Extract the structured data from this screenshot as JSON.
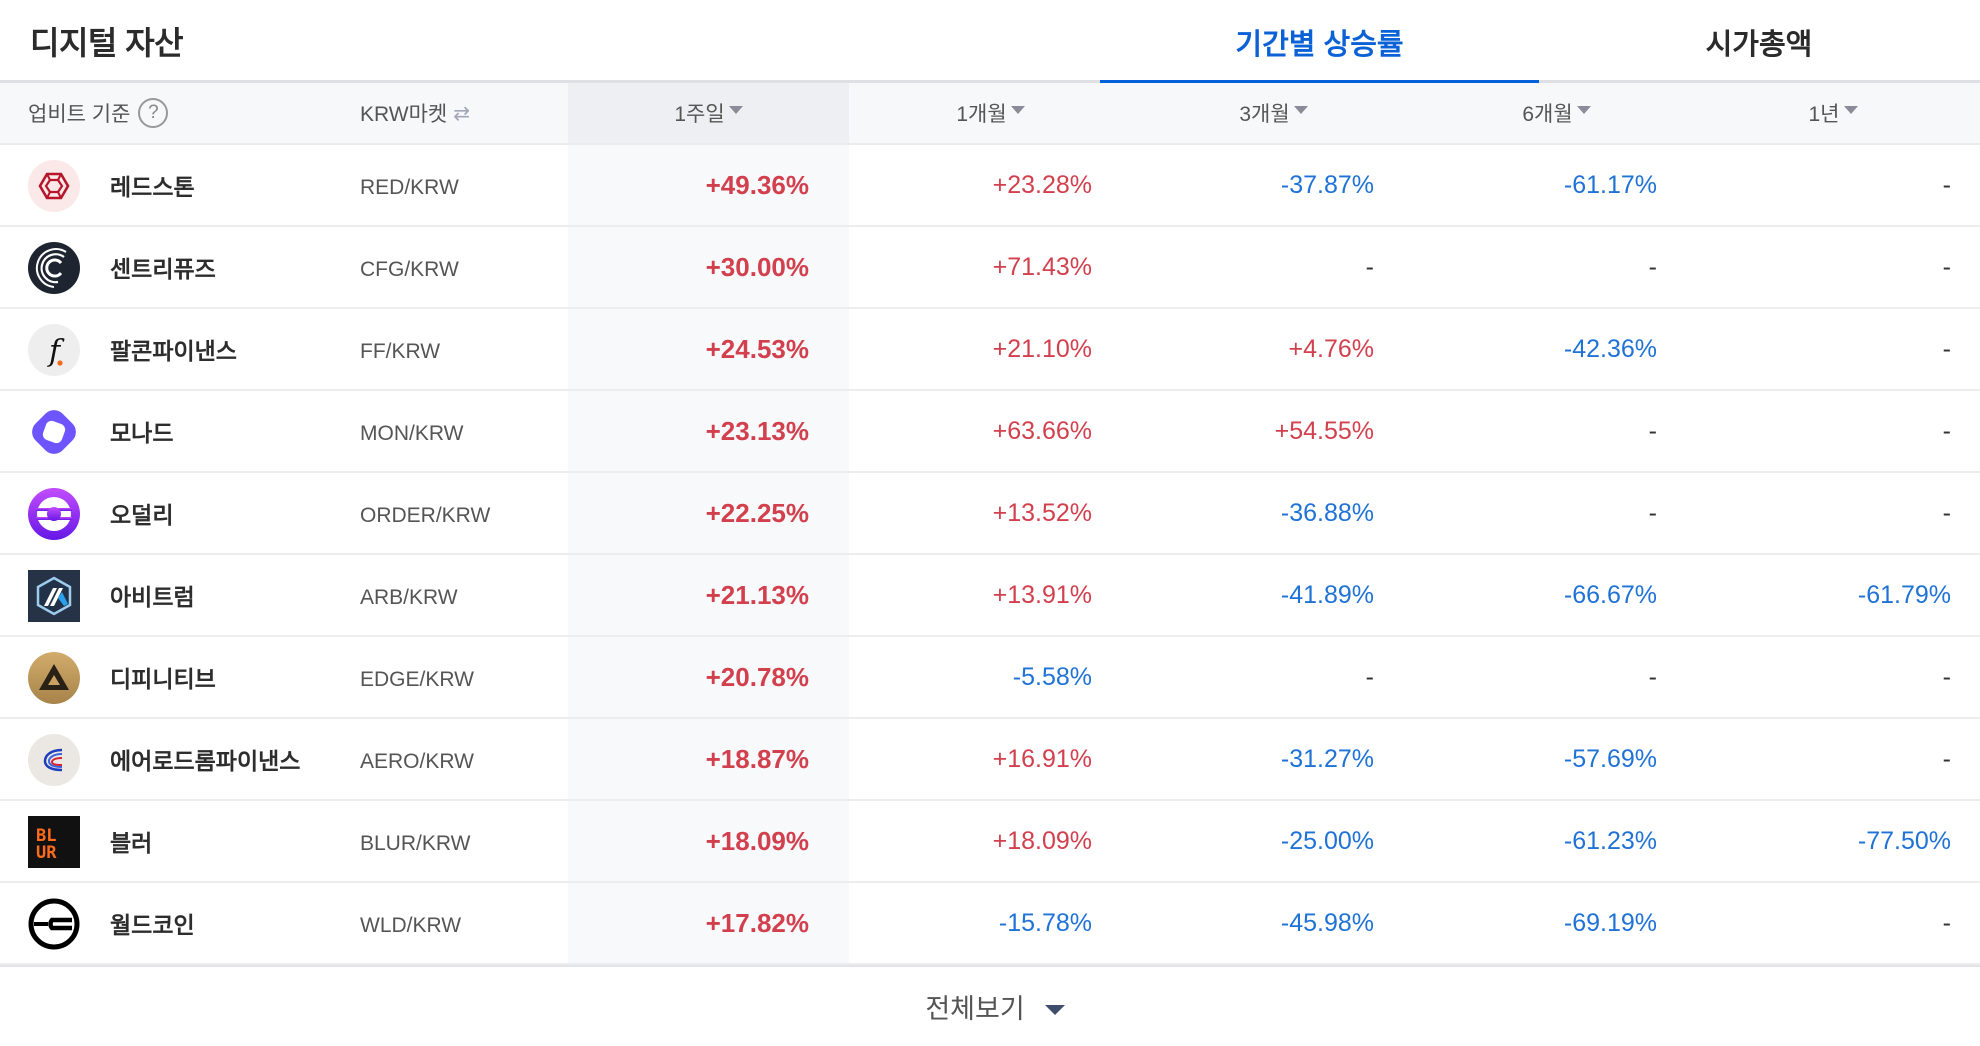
{
  "header": {
    "title": "디지털 자산",
    "tabs": [
      {
        "label": "기간별 상승률",
        "active": true
      },
      {
        "label": "시가총액",
        "active": false
      }
    ]
  },
  "table_header": {
    "basis_label": "업비트 기준",
    "help_icon": "?",
    "market_label": "KRW마켓",
    "swap_icon": "⇄",
    "columns": [
      "1주일",
      "1개월",
      "3개월",
      "6개월",
      "1년"
    ]
  },
  "colors": {
    "accent": "#0061d9",
    "up": "#d2404e",
    "down": "#1f72d6"
  },
  "rows": [
    {
      "name": "레드스톤",
      "market": "RED/KRW",
      "icon": "redstone-icon",
      "w1": "+49.36%",
      "m1": "+23.28%",
      "m3": "-37.87%",
      "m6": "-61.17%",
      "y1": "-"
    },
    {
      "name": "센트리퓨즈",
      "market": "CFG/KRW",
      "icon": "centrifuge-icon",
      "w1": "+30.00%",
      "m1": "+71.43%",
      "m3": "-",
      "m6": "-",
      "y1": "-"
    },
    {
      "name": "팔콘파이낸스",
      "market": "FF/KRW",
      "icon": "falcon-finance-icon",
      "w1": "+24.53%",
      "m1": "+21.10%",
      "m3": "+4.76%",
      "m6": "-42.36%",
      "y1": "-"
    },
    {
      "name": "모나드",
      "market": "MON/KRW",
      "icon": "monad-icon",
      "w1": "+23.13%",
      "m1": "+63.66%",
      "m3": "+54.55%",
      "m6": "-",
      "y1": "-"
    },
    {
      "name": "오덜리",
      "market": "ORDER/KRW",
      "icon": "orderly-icon",
      "w1": "+22.25%",
      "m1": "+13.52%",
      "m3": "-36.88%",
      "m6": "-",
      "y1": "-"
    },
    {
      "name": "아비트럼",
      "market": "ARB/KRW",
      "icon": "arbitrum-icon",
      "w1": "+21.13%",
      "m1": "+13.91%",
      "m3": "-41.89%",
      "m6": "-66.67%",
      "y1": "-61.79%"
    },
    {
      "name": "디피니티브",
      "market": "EDGE/KRW",
      "icon": "definitive-icon",
      "w1": "+20.78%",
      "m1": "-5.58%",
      "m3": "-",
      "m6": "-",
      "y1": "-"
    },
    {
      "name": "에어로드롬파이낸스",
      "market": "AERO/KRW",
      "icon": "aerodrome-icon",
      "w1": "+18.87%",
      "m1": "+16.91%",
      "m3": "-31.27%",
      "m6": "-57.69%",
      "y1": "-"
    },
    {
      "name": "블러",
      "market": "BLUR/KRW",
      "icon": "blur-icon",
      "w1": "+18.09%",
      "m1": "+18.09%",
      "m3": "-25.00%",
      "m6": "-61.23%",
      "y1": "-77.50%"
    },
    {
      "name": "월드코인",
      "market": "WLD/KRW",
      "icon": "worldcoin-icon",
      "w1": "+17.82%",
      "m1": "-15.78%",
      "m3": "-45.98%",
      "m6": "-69.19%",
      "y1": "-"
    }
  ],
  "footer": {
    "more_label": "전체보기"
  }
}
